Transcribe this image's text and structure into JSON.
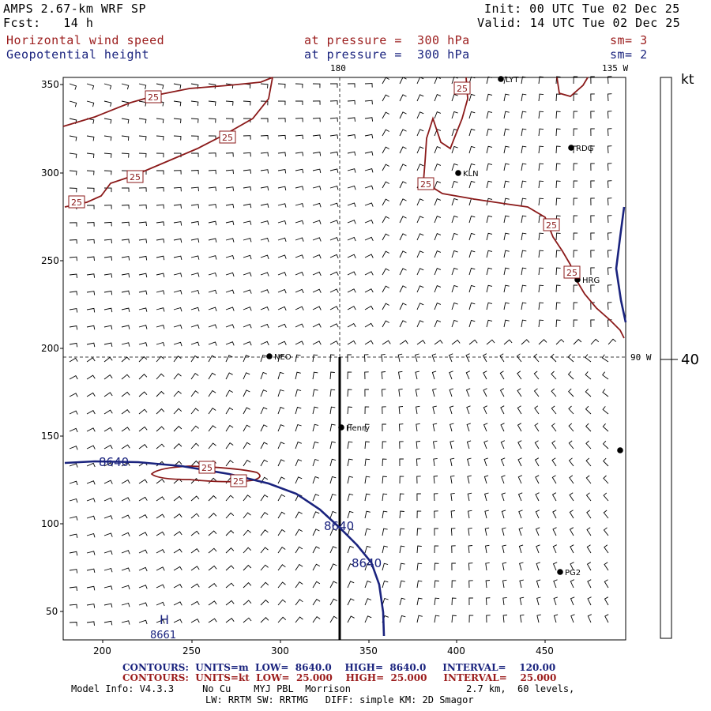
{
  "header": {
    "model": "AMPS 2.67-km WRF SP",
    "fcst": "Fcst:   14 h",
    "init": "Init: 00 UTC Tue 02 Dec 25",
    "valid": "Valid: 14 UTC Tue 02 Dec 25",
    "field1_name": "Horizontal wind speed",
    "field1_level": "at pressure =  300 hPa",
    "field1_sm": "sm= 3",
    "field2_name": "Geopotential height",
    "field2_level": "at pressure =  300 hPa",
    "field2_sm": "sm= 2"
  },
  "map": {
    "meridian_180": "180",
    "meridian_135w": "135 W",
    "meridian_90w": "90 W",
    "x_ticks": [
      "200",
      "250",
      "300",
      "350",
      "400",
      "450"
    ],
    "y_ticks": [
      "350",
      "300",
      "250",
      "200",
      "150",
      "100",
      "50"
    ],
    "stations": [
      {
        "name": "LYT"
      },
      {
        "name": "RDG"
      },
      {
        "name": "KLN"
      },
      {
        "name": "HRG"
      },
      {
        "name": "NEO"
      },
      {
        "name": "Henry"
      },
      {
        "name": "PG2"
      },
      {
        "name": ""
      }
    ],
    "contour_labels_speed": [
      "25",
      "25",
      "25",
      "25",
      "25",
      "25",
      "25",
      "25",
      "25",
      "25",
      "25"
    ],
    "contour_labels_height": [
      "8640",
      "8640",
      "8640"
    ],
    "high_label": "H",
    "high_value": "8661",
    "colors": {
      "speed": "#8b1a1a",
      "height": "#1a237e",
      "frame": "#000000"
    }
  },
  "colorbar": {
    "unit": "kt",
    "tick_label": "40"
  },
  "footer": {
    "c1_label": "CONTOURS:",
    "c1_units": "UNITS=m",
    "c1_low": "LOW=  8640.0",
    "c1_high": "HIGH=  8640.0",
    "c1_interval": "INTERVAL=    120.00",
    "c2_label": "CONTOURS:",
    "c2_units": "UNITS=kt",
    "c2_low": "LOW=  25.000",
    "c2_high": "HIGH=  25.000",
    "c2_interval": "INTERVAL=    25.000",
    "model_info": "Model Info: V4.3.3     No Cu    MYJ PBL  Morrison",
    "grid_info": "2.7 km,  60 levels,",
    "physics_info": "LW: RRTM SW: RRTMG   DIFF: simple KM: 2D Smagor"
  }
}
